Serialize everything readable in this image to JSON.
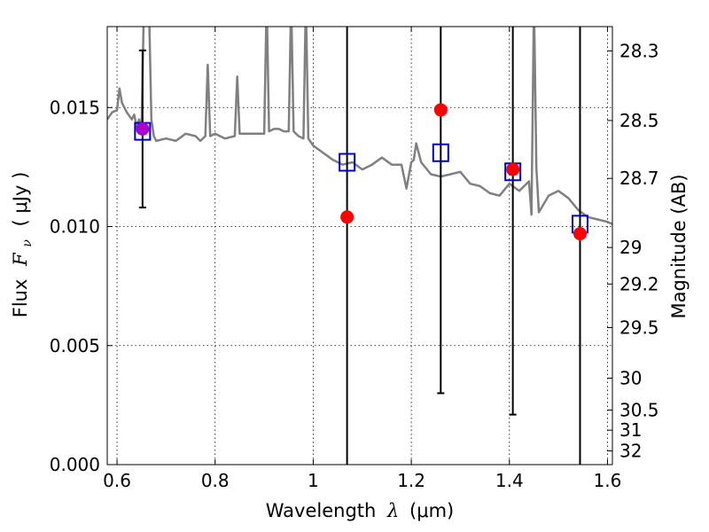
{
  "chart_data": {
    "type": "scatter",
    "xlabel_text": "Wavelength",
    "xlabel_symbol": "λ",
    "xlabel_unit": "(μm)",
    "ylabel_text": "Flux",
    "ylabel_symbol": "F",
    "ylabel_subscript": "ν",
    "ylabel_unit": "( μJy )",
    "y2label": "Magnitude (AB)",
    "xlim": [
      0.58,
      1.61
    ],
    "ylim": [
      0.0,
      0.0184
    ],
    "grid": true,
    "x_ticks": [
      0.6,
      0.8,
      1.0,
      1.2,
      1.4,
      1.6
    ],
    "x_tick_labels": [
      "0.6",
      "0.8",
      "1",
      "1.2",
      "1.4",
      "1.6"
    ],
    "y_ticks": [
      0.0,
      0.005,
      0.01,
      0.015
    ],
    "y_tick_labels": [
      "0.000",
      "0.005",
      "0.010",
      "0.015"
    ],
    "y2_ticks": [
      28.3,
      28.5,
      28.7,
      29,
      29.2,
      29.5,
      30,
      30.5,
      31,
      32
    ],
    "y2_tick_labels": [
      "28.3",
      "28.5",
      "28.7",
      "29",
      "29.2",
      "29.5",
      "30",
      "30.5",
      "31",
      "32"
    ],
    "sed_model_color": "#808080",
    "observed_color": "#ff0000",
    "model_marker_color": "#0000cc",
    "overlap_color": "#aa00cc",
    "sed_model": {
      "x": [
        0.58,
        0.59,
        0.6,
        0.605,
        0.61,
        0.62,
        0.63,
        0.635,
        0.64,
        0.645,
        0.65,
        0.655,
        0.66,
        0.665,
        0.67,
        0.675,
        0.68,
        0.7,
        0.72,
        0.74,
        0.76,
        0.77,
        0.78,
        0.785,
        0.79,
        0.8,
        0.82,
        0.84,
        0.845,
        0.85,
        0.86,
        0.88,
        0.9,
        0.905,
        0.91,
        0.92,
        0.93,
        0.94,
        0.95,
        0.955,
        0.96,
        0.97,
        0.98,
        0.985,
        0.99,
        1.0,
        1.02,
        1.04,
        1.06,
        1.08,
        1.1,
        1.12,
        1.14,
        1.16,
        1.18,
        1.19,
        1.2,
        1.205,
        1.21,
        1.22,
        1.24,
        1.26,
        1.28,
        1.3,
        1.32,
        1.34,
        1.36,
        1.38,
        1.4,
        1.42,
        1.44,
        1.445,
        1.45,
        1.455,
        1.46,
        1.48,
        1.5,
        1.52,
        1.54,
        1.56,
        1.58,
        1.6,
        1.61
      ],
      "y": [
        0.0145,
        0.0148,
        0.0149,
        0.0158,
        0.0152,
        0.0148,
        0.0145,
        0.0147,
        0.0142,
        0.0145,
        0.014,
        0.0195,
        0.0185,
        0.0195,
        0.0145,
        0.0138,
        0.0136,
        0.0137,
        0.0136,
        0.0139,
        0.0138,
        0.0136,
        0.0138,
        0.0168,
        0.0138,
        0.0139,
        0.0137,
        0.0138,
        0.0163,
        0.0139,
        0.0139,
        0.0139,
        0.0139,
        0.0195,
        0.014,
        0.0141,
        0.0141,
        0.014,
        0.014,
        0.0195,
        0.014,
        0.0138,
        0.0137,
        0.0195,
        0.0137,
        0.0134,
        0.0131,
        0.0128,
        0.0126,
        0.0127,
        0.0124,
        0.0126,
        0.0129,
        0.0126,
        0.0126,
        0.0116,
        0.0127,
        0.0128,
        0.0135,
        0.0127,
        0.0122,
        0.0121,
        0.0122,
        0.0123,
        0.0118,
        0.0117,
        0.0114,
        0.0113,
        0.0118,
        0.0115,
        0.0119,
        0.0105,
        0.0195,
        0.0125,
        0.0106,
        0.0113,
        0.0115,
        0.0112,
        0.0107,
        0.0104,
        0.0103,
        0.0102,
        0.0101
      ]
    },
    "observed_points": [
      {
        "x": 0.652,
        "y": 0.0141,
        "yerr_low": 0.0108,
        "yerr_high": 0.0174
      },
      {
        "x": 1.069,
        "y": 0.0104,
        "yerr_low": 0.0,
        "yerr_high": 0.0184
      },
      {
        "x": 1.26,
        "y": 0.0149,
        "yerr_low": 0.003,
        "yerr_high": 0.0184
      },
      {
        "x": 1.407,
        "y": 0.0124,
        "yerr_low": 0.0021,
        "yerr_high": 0.0184
      },
      {
        "x": 1.544,
        "y": 0.0097,
        "yerr_low": 0.0,
        "yerr_high": 0.0184
      }
    ],
    "model_points": [
      {
        "x": 0.652,
        "y": 0.014
      },
      {
        "x": 1.069,
        "y": 0.0127
      },
      {
        "x": 1.26,
        "y": 0.0131
      },
      {
        "x": 1.407,
        "y": 0.0123
      },
      {
        "x": 1.544,
        "y": 0.0101
      }
    ]
  }
}
